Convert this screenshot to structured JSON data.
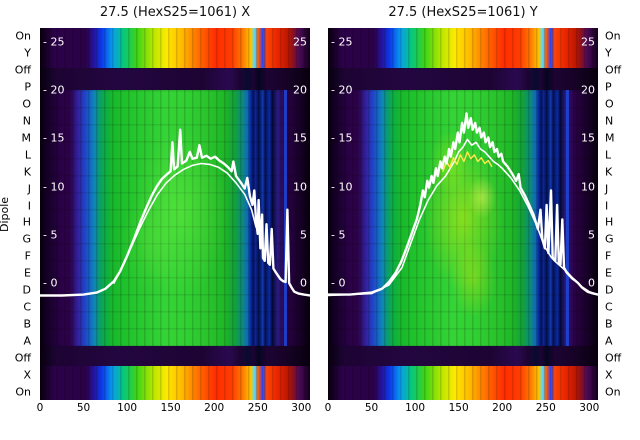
{
  "figure": {
    "left_title": "27.5 (HexS25=1061) X",
    "right_title": "27.5 (HexS25=1061) Y",
    "axis_label": "Dipole",
    "row_labels": [
      "On",
      "Y",
      "Off",
      "P",
      "O",
      "N",
      "M",
      "L",
      "K",
      "J",
      "I",
      "H",
      "G",
      "F",
      "E",
      "D",
      "C",
      "B",
      "A",
      "Off",
      "X",
      "On"
    ],
    "value_tick_labels_left": [
      "- 25",
      "- 20",
      "- 15",
      "- 10",
      "- 5",
      "- 0"
    ],
    "value_tick_labels_right": [
      "25",
      "20",
      "15",
      "10",
      "5",
      "0"
    ]
  },
  "chart_data": [
    {
      "type": "heatmap",
      "title": "27.5 (HexS25=1061) X",
      "xlabel": "",
      "ylabel": "Dipole",
      "x_range": [
        0,
        310
      ],
      "x_ticks": [
        0,
        50,
        100,
        150,
        200,
        250,
        300
      ],
      "value_ticks": [
        25,
        20,
        15,
        10,
        5,
        0
      ],
      "rows": [
        "On",
        "Y",
        "Off",
        "P",
        "O",
        "N",
        "M",
        "L",
        "K",
        "J",
        "I",
        "H",
        "G",
        "F",
        "E",
        "D",
        "C",
        "B",
        "A",
        "Off",
        "X",
        "On"
      ],
      "colormap": "nipy_spectral-like",
      "grid": false,
      "legend": false,
      "overlay_series": [
        {
          "name": "profile-x-secondary",
          "color": "#ffffff",
          "width": 1.6,
          "points": [
            [
              85,
              0.0
            ],
            [
              95,
              1.8
            ],
            [
              105,
              3.8
            ],
            [
              115,
              5.8
            ],
            [
              125,
              7.6
            ],
            [
              135,
              9.2
            ],
            [
              145,
              10.4
            ],
            [
              155,
              11.2
            ],
            [
              165,
              11.8
            ],
            [
              175,
              12.2
            ],
            [
              185,
              12.4
            ],
            [
              195,
              12.3
            ],
            [
              205,
              12.0
            ],
            [
              215,
              11.4
            ],
            [
              225,
              10.4
            ],
            [
              235,
              9.2
            ],
            [
              243,
              7.6
            ],
            [
              248,
              5.8
            ]
          ]
        },
        {
          "name": "profile-x-main",
          "color": "#ffffff",
          "width": 2.4,
          "points": [
            [
              0,
              -1.3
            ],
            [
              25,
              -1.3
            ],
            [
              50,
              -1.2
            ],
            [
              65,
              -1.0
            ],
            [
              75,
              -0.6
            ],
            [
              85,
              0.2
            ],
            [
              92,
              1.2
            ],
            [
              100,
              2.8
            ],
            [
              108,
              4.6
            ],
            [
              115,
              6.3
            ],
            [
              122,
              7.8
            ],
            [
              128,
              9.0
            ],
            [
              134,
              10.0
            ],
            [
              140,
              10.8
            ],
            [
              146,
              11.3
            ],
            [
              150,
              11.6
            ],
            [
              152,
              14.6
            ],
            [
              154,
              11.8
            ],
            [
              158,
              12.1
            ],
            [
              161,
              15.9
            ],
            [
              163,
              12.4
            ],
            [
              168,
              12.7
            ],
            [
              172,
              13.6
            ],
            [
              175,
              12.9
            ],
            [
              180,
              13.0
            ],
            [
              183,
              14.3
            ],
            [
              186,
              13.0
            ],
            [
              191,
              13.2
            ],
            [
              196,
              12.9
            ],
            [
              201,
              13.1
            ],
            [
              206,
              12.7
            ],
            [
              211,
              12.4
            ],
            [
              216,
              12.0
            ],
            [
              220,
              11.6
            ],
            [
              222,
              12.6
            ],
            [
              225,
              11.1
            ],
            [
              230,
              10.5
            ],
            [
              235,
              9.8
            ],
            [
              238,
              10.9
            ],
            [
              241,
              9.0
            ],
            [
              244,
              8.1
            ],
            [
              246,
              9.6
            ],
            [
              248,
              6.6
            ],
            [
              250,
              5.1
            ],
            [
              251,
              8.6
            ],
            [
              253,
              3.6
            ],
            [
              255,
              7.1
            ],
            [
              256,
              2.6
            ],
            [
              258,
              2.3
            ],
            [
              260,
              6.1
            ],
            [
              262,
              2.1
            ],
            [
              264,
              1.9
            ],
            [
              266,
              5.6
            ],
            [
              268,
              1.5
            ],
            [
              270,
              1.2
            ],
            [
              273,
              0.8
            ],
            [
              276,
              0.4
            ],
            [
              279,
              0.2
            ],
            [
              282,
              0.1
            ],
            [
              284,
              7.6
            ],
            [
              286,
              0.0
            ],
            [
              289,
              -0.5
            ],
            [
              292,
              -0.9
            ],
            [
              297,
              -1.1
            ],
            [
              303,
              -1.2
            ],
            [
              310,
              -1.3
            ]
          ]
        }
      ]
    },
    {
      "type": "heatmap",
      "title": "27.5 (HexS25=1061) Y",
      "xlabel": "",
      "ylabel": "Dipole",
      "x_range": [
        0,
        310
      ],
      "x_ticks": [
        0,
        50,
        100,
        150,
        200,
        250,
        300
      ],
      "value_ticks": [
        25,
        20,
        15,
        10,
        5,
        0
      ],
      "rows": [
        "On",
        "Y",
        "Off",
        "P",
        "O",
        "N",
        "M",
        "L",
        "K",
        "J",
        "I",
        "H",
        "G",
        "F",
        "E",
        "D",
        "C",
        "B",
        "A",
        "Off",
        "X",
        "On"
      ],
      "colormap": "nipy_spectral-like",
      "grid": false,
      "legend": false,
      "overlay_series": [
        {
          "name": "profile-y-secondary",
          "color": "#ffffff",
          "width": 1.6,
          "points": [
            [
              0,
              -1.3
            ],
            [
              50,
              -1.1
            ],
            [
              70,
              -0.2
            ],
            [
              85,
              1.6
            ],
            [
              95,
              4.1
            ],
            [
              105,
              6.6
            ],
            [
              115,
              8.6
            ],
            [
              125,
              10.1
            ],
            [
              135,
              11.1
            ],
            [
              145,
              12.6
            ],
            [
              150,
              13.6
            ],
            [
              155,
              14.1
            ],
            [
              160,
              14.9
            ],
            [
              165,
              14.3
            ],
            [
              170,
              14.6
            ],
            [
              175,
              13.9
            ],
            [
              180,
              13.6
            ],
            [
              185,
              13.1
            ],
            [
              190,
              12.6
            ],
            [
              195,
              12.3
            ],
            [
              200,
              11.9
            ],
            [
              210,
              10.9
            ],
            [
              220,
              9.6
            ],
            [
              230,
              7.9
            ],
            [
              240,
              5.9
            ],
            [
              248,
              3.9
            ],
            [
              252,
              3.3
            ],
            [
              256,
              2.7
            ],
            [
              260,
              2.3
            ],
            [
              265,
              1.9
            ],
            [
              270,
              1.5
            ],
            [
              275,
              1.1
            ],
            [
              280,
              0.6
            ],
            [
              285,
              0.2
            ],
            [
              290,
              -0.3
            ],
            [
              300,
              -0.9
            ],
            [
              310,
              -1.2
            ]
          ]
        },
        {
          "name": "profile-y-inner",
          "color": "#ffe94d",
          "width": 1.4,
          "points": [
            [
              132,
              11.6
            ],
            [
              136,
              12.6
            ],
            [
              140,
              12.0
            ],
            [
              144,
              13.0
            ],
            [
              148,
              12.3
            ],
            [
              152,
              13.3
            ],
            [
              156,
              12.6
            ],
            [
              160,
              13.6
            ],
            [
              164,
              12.9
            ],
            [
              168,
              13.3
            ],
            [
              172,
              12.6
            ],
            [
              176,
              13.0
            ],
            [
              180,
              12.4
            ],
            [
              184,
              12.7
            ],
            [
              188,
              12.1
            ]
          ]
        },
        {
          "name": "profile-y-main",
          "color": "#ffffff",
          "width": 2.4,
          "points": [
            [
              0,
              -1.2
            ],
            [
              25,
              -1.2
            ],
            [
              50,
              -1.0
            ],
            [
              62,
              -0.6
            ],
            [
              70,
              0.1
            ],
            [
              78,
              1.1
            ],
            [
              84,
              2.2
            ],
            [
              90,
              3.6
            ],
            [
              96,
              5.1
            ],
            [
              102,
              6.6
            ],
            [
              106,
              8.1
            ],
            [
              109,
              9.6
            ],
            [
              111,
              8.9
            ],
            [
              114,
              10.6
            ],
            [
              116,
              9.9
            ],
            [
              119,
              11.1
            ],
            [
              121,
              10.4
            ],
            [
              124,
              11.9
            ],
            [
              126,
              11.1
            ],
            [
              129,
              12.6
            ],
            [
              131,
              11.9
            ],
            [
              134,
              13.1
            ],
            [
              136,
              12.4
            ],
            [
              139,
              13.9
            ],
            [
              141,
              13.1
            ],
            [
              144,
              14.6
            ],
            [
              146,
              13.9
            ],
            [
              149,
              15.6
            ],
            [
              151,
              14.6
            ],
            [
              154,
              16.6
            ],
            [
              156,
              15.6
            ],
            [
              159,
              17.6
            ],
            [
              161,
              16.1
            ],
            [
              164,
              17.1
            ],
            [
              166,
              15.9
            ],
            [
              169,
              16.6
            ],
            [
              171,
              15.6
            ],
            [
              174,
              16.1
            ],
            [
              176,
              15.1
            ],
            [
              179,
              15.6
            ],
            [
              181,
              14.6
            ],
            [
              184,
              15.1
            ],
            [
              186,
              14.1
            ],
            [
              189,
              14.6
            ],
            [
              191,
              13.6
            ],
            [
              194,
              13.9
            ],
            [
              196,
              13.1
            ],
            [
              199,
              13.4
            ],
            [
              201,
              12.6
            ],
            [
              206,
              12.1
            ],
            [
              211,
              11.4
            ],
            [
              216,
              10.6
            ],
            [
              219,
              11.3
            ],
            [
              221,
              9.9
            ],
            [
              226,
              9.1
            ],
            [
              231,
              8.1
            ],
            [
              236,
              7.1
            ],
            [
              241,
              5.6
            ],
            [
              244,
              7.6
            ],
            [
              246,
              4.6
            ],
            [
              249,
              3.6
            ],
            [
              251,
              8.1
            ],
            [
              253,
              3.1
            ],
            [
              256,
              9.6
            ],
            [
              258,
              2.6
            ],
            [
              261,
              2.3
            ],
            [
              263,
              8.1
            ],
            [
              265,
              2.1
            ],
            [
              267,
              1.9
            ],
            [
              269,
              6.6
            ],
            [
              271,
              1.6
            ],
            [
              274,
              1.1
            ],
            [
              277,
              0.8
            ],
            [
              280,
              0.5
            ],
            [
              283,
              0.3
            ],
            [
              287,
              0.0
            ],
            [
              292,
              -0.5
            ],
            [
              298,
              -0.9
            ],
            [
              305,
              -1.1
            ],
            [
              310,
              -1.2
            ]
          ]
        }
      ]
    }
  ]
}
